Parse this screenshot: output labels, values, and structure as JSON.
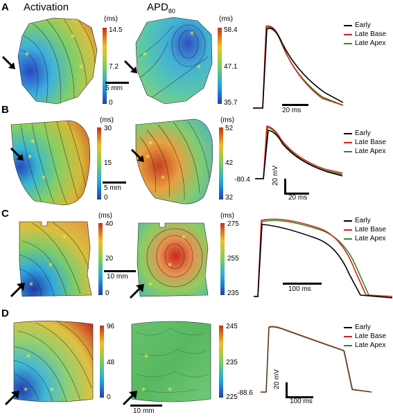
{
  "headers": {
    "activation": "Activation",
    "apd": "APD",
    "apd_sub": "80"
  },
  "legend": [
    "Early",
    "Late Base",
    "Late Apex"
  ],
  "trace_colors": {
    "early": "#000000",
    "late_base": "#d81e1e",
    "late_apex": "#2a8a2a"
  },
  "rows": [
    {
      "label": "A",
      "act_unit": "(ms)",
      "act_ticks": [
        "14.5",
        "7.2",
        "0"
      ],
      "apd_unit": "(ms)",
      "apd_ticks": [
        "58.4",
        "47.1",
        "35.7"
      ],
      "map_scale": "5 mm",
      "trace_time": "20 ms",
      "trace_volt": "",
      "trace_min": ""
    },
    {
      "label": "B",
      "act_unit": "(ms)",
      "act_ticks": [
        "30",
        "15",
        "0"
      ],
      "apd_unit": "(ms)",
      "apd_ticks": [
        "52",
        "42",
        "32"
      ],
      "map_scale": "5 mm",
      "trace_time": "20 ms",
      "trace_volt": "20 mV",
      "trace_min": "-80.4"
    },
    {
      "label": "C",
      "act_unit": "(ms)",
      "act_ticks": [
        "40",
        "20",
        "0"
      ],
      "apd_unit": "(ms)",
      "apd_ticks": [
        "275",
        "255",
        "235"
      ],
      "map_scale": "10 mm",
      "trace_time": "100 ms",
      "trace_volt": "",
      "trace_min": ""
    },
    {
      "label": "D",
      "act_unit": "(ms)",
      "act_ticks": [
        "96",
        "48",
        "0"
      ],
      "apd_unit": "(ms)",
      "apd_ticks": [
        "245",
        "235",
        "225"
      ],
      "map_scale": "10 mm",
      "trace_time": "100 ms",
      "trace_volt": "20 mV",
      "trace_min": "-88.6"
    }
  ]
}
